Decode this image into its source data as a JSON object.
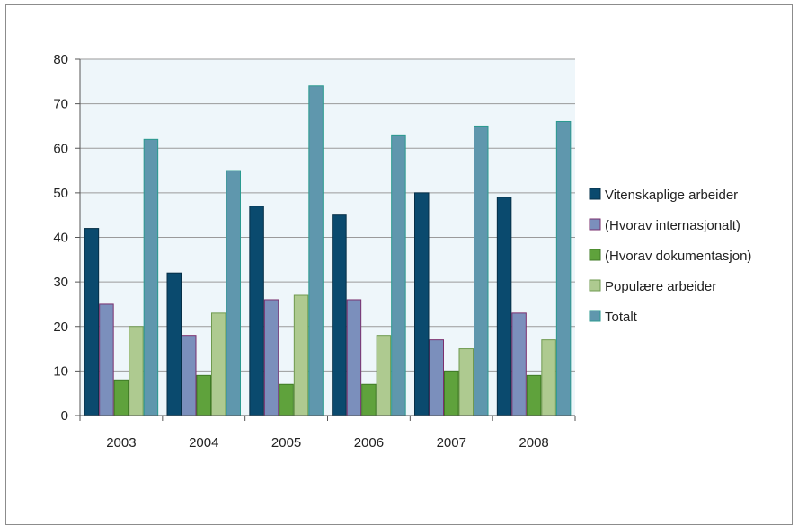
{
  "chart_data": {
    "type": "bar",
    "categories": [
      "2003",
      "2004",
      "2005",
      "2006",
      "2007",
      "2008"
    ],
    "series": [
      {
        "name": "Vitenskaplige arbeider",
        "color": "#0a4a6e",
        "stroke": "#062f47",
        "values": [
          42,
          32,
          47,
          45,
          50,
          49
        ]
      },
      {
        "name": "(Hvorav internasjonalt)",
        "color": "#7b8fbc",
        "stroke": "#7a2f6e",
        "values": [
          25,
          18,
          26,
          26,
          17,
          23
        ]
      },
      {
        "name": "(Hvorav dokumentasjon)",
        "color": "#5fa23c",
        "stroke": "#3f7a25",
        "values": [
          8,
          9,
          7,
          7,
          10,
          9
        ]
      },
      {
        "name": "Populære arbeider",
        "color": "#aeca90",
        "stroke": "#6f9a4f",
        "values": [
          20,
          23,
          27,
          18,
          15,
          17
        ]
      },
      {
        "name": "Totalt",
        "color": "#5f97ad",
        "stroke": "#2a9a8f",
        "values": [
          62,
          55,
          74,
          63,
          65,
          66
        ]
      }
    ],
    "ylim": [
      0,
      80
    ],
    "yticks": [
      0,
      10,
      20,
      30,
      40,
      50,
      60,
      70,
      80
    ],
    "grid": true,
    "legend": "right",
    "plot_background": "#eef6fa",
    "gridline_color": "#9a9a9a"
  }
}
